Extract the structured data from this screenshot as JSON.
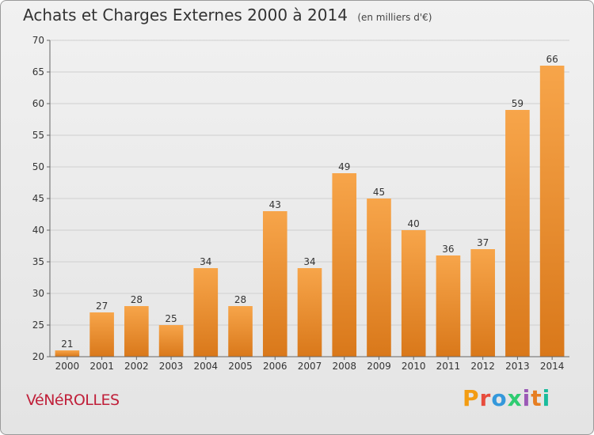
{
  "header": {
    "title": "Achats et Charges Externes 2000 à 2014",
    "unit": "(en milliers d'€)"
  },
  "footer": {
    "place": "VéNéROLLES",
    "logo_text": "Proxiti",
    "logo_colors": [
      "#f39c12",
      "#e74c3c",
      "#3498db",
      "#2ecc71",
      "#9b59b6",
      "#e67e22",
      "#1abc9c"
    ]
  },
  "chart_data": {
    "type": "bar",
    "categories": [
      "2000",
      "2001",
      "2002",
      "2003",
      "2004",
      "2005",
      "2006",
      "2007",
      "2008",
      "2009",
      "2010",
      "2011",
      "2012",
      "2013",
      "2014"
    ],
    "values": [
      21,
      27,
      28,
      25,
      34,
      28,
      43,
      34,
      49,
      45,
      40,
      36,
      37,
      59,
      66
    ],
    "ylim": [
      20,
      70
    ],
    "yticks": [
      20,
      25,
      30,
      35,
      40,
      45,
      50,
      55,
      60,
      65,
      70
    ],
    "grid": true,
    "bar_color_top": "#f7a54a",
    "bar_color_bottom": "#d9781a"
  }
}
